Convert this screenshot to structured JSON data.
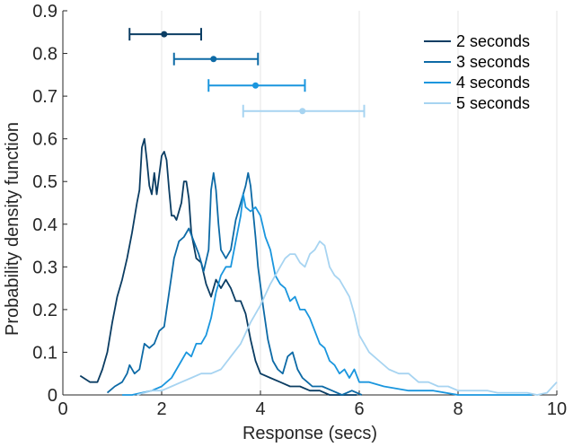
{
  "chart_data": {
    "type": "line",
    "xlabel": "Response (secs)",
    "ylabel": "Probability density function",
    "xlim": [
      0,
      10
    ],
    "ylim": [
      0,
      0.9
    ],
    "x_ticks": [
      0,
      2,
      4,
      6,
      8,
      10
    ],
    "y_ticks": [
      0,
      0.1,
      0.2,
      0.3,
      0.4,
      0.5,
      0.6,
      0.7,
      0.8,
      0.9
    ],
    "x_tick_labels": [
      "0",
      "2",
      "4",
      "6",
      "8",
      "10"
    ],
    "y_tick_labels": [
      "0",
      "0.1",
      "0.2",
      "0.3",
      "0.4",
      "0.5",
      "0.6",
      "0.7",
      "0.8",
      "0.9"
    ],
    "grid": "vertical",
    "legend_position": "top-right",
    "series": [
      {
        "name": "2 seconds",
        "color": "#0b3d63",
        "mean": 2.05,
        "error_low": 1.35,
        "error_high": 2.8,
        "marker_y": 0.845,
        "x": [
          0.35,
          0.55,
          0.7,
          0.8,
          0.9,
          1.0,
          1.1,
          1.2,
          1.3,
          1.4,
          1.5,
          1.55,
          1.6,
          1.65,
          1.7,
          1.75,
          1.8,
          1.85,
          1.9,
          2.0,
          2.05,
          2.1,
          2.15,
          2.2,
          2.25,
          2.3,
          2.4,
          2.45,
          2.5,
          2.55,
          2.6,
          2.7,
          2.8,
          2.9,
          3.0,
          3.1,
          3.2,
          3.3,
          3.4,
          3.5,
          3.6,
          3.7,
          3.8,
          3.9,
          4.0,
          4.2,
          4.4,
          4.6,
          4.8,
          5.0,
          5.2,
          5.4,
          5.6,
          5.8,
          5.95
        ],
        "y": [
          0.045,
          0.03,
          0.03,
          0.06,
          0.1,
          0.17,
          0.23,
          0.27,
          0.32,
          0.38,
          0.45,
          0.48,
          0.58,
          0.6,
          0.55,
          0.49,
          0.47,
          0.52,
          0.47,
          0.56,
          0.57,
          0.55,
          0.48,
          0.42,
          0.42,
          0.41,
          0.45,
          0.5,
          0.5,
          0.46,
          0.38,
          0.32,
          0.31,
          0.26,
          0.23,
          0.27,
          0.25,
          0.27,
          0.25,
          0.22,
          0.22,
          0.19,
          0.13,
          0.08,
          0.05,
          0.04,
          0.03,
          0.02,
          0.02,
          0.01,
          0.01,
          0.0,
          0.0,
          0.0,
          0.0
        ]
      },
      {
        "name": "3 seconds",
        "color": "#0d6aa6",
        "mean": 3.05,
        "error_low": 2.25,
        "error_high": 3.95,
        "marker_y": 0.787,
        "x": [
          0.9,
          1.05,
          1.2,
          1.3,
          1.35,
          1.45,
          1.55,
          1.65,
          1.75,
          1.85,
          1.95,
          2.05,
          2.15,
          2.25,
          2.35,
          2.45,
          2.55,
          2.65,
          2.75,
          2.85,
          2.95,
          3.0,
          3.05,
          3.1,
          3.15,
          3.2,
          3.3,
          3.4,
          3.5,
          3.6,
          3.7,
          3.75,
          3.8,
          3.9,
          3.95,
          4.05,
          4.15,
          4.25,
          4.35,
          4.45,
          4.55,
          4.65,
          4.75,
          4.85,
          4.95,
          5.05,
          5.25,
          5.45,
          5.65,
          5.85,
          6.05
        ],
        "y": [
          0.005,
          0.02,
          0.03,
          0.05,
          0.07,
          0.05,
          0.06,
          0.12,
          0.11,
          0.12,
          0.15,
          0.16,
          0.24,
          0.32,
          0.36,
          0.37,
          0.39,
          0.36,
          0.33,
          0.29,
          0.34,
          0.48,
          0.52,
          0.48,
          0.4,
          0.34,
          0.32,
          0.34,
          0.41,
          0.45,
          0.49,
          0.52,
          0.49,
          0.37,
          0.3,
          0.21,
          0.13,
          0.08,
          0.06,
          0.05,
          0.09,
          0.1,
          0.06,
          0.04,
          0.03,
          0.02,
          0.02,
          0.01,
          0.0,
          0.01,
          0.0
        ]
      },
      {
        "name": "4 seconds",
        "color": "#1a96de",
        "mean": 3.9,
        "error_low": 2.95,
        "error_high": 4.9,
        "marker_y": 0.725,
        "x": [
          1.2,
          1.4,
          1.6,
          1.8,
          2.0,
          2.1,
          2.2,
          2.3,
          2.4,
          2.5,
          2.6,
          2.7,
          2.8,
          2.9,
          3.0,
          3.1,
          3.2,
          3.3,
          3.4,
          3.5,
          3.6,
          3.65,
          3.7,
          3.8,
          3.9,
          4.0,
          4.1,
          4.2,
          4.3,
          4.4,
          4.5,
          4.6,
          4.7,
          4.8,
          4.9,
          5.0,
          5.1,
          5.2,
          5.3,
          5.4,
          5.5,
          5.6,
          5.7,
          5.8,
          5.9,
          6.0,
          6.2,
          6.5,
          7.0,
          7.5,
          8.0,
          8.5,
          9.0,
          9.5
        ],
        "y": [
          0.0,
          0.0,
          0.005,
          0.01,
          0.02,
          0.03,
          0.04,
          0.06,
          0.08,
          0.1,
          0.09,
          0.12,
          0.12,
          0.14,
          0.18,
          0.24,
          0.28,
          0.3,
          0.3,
          0.36,
          0.42,
          0.47,
          0.44,
          0.43,
          0.44,
          0.42,
          0.37,
          0.34,
          0.28,
          0.26,
          0.25,
          0.22,
          0.23,
          0.2,
          0.2,
          0.18,
          0.15,
          0.12,
          0.11,
          0.08,
          0.07,
          0.05,
          0.06,
          0.04,
          0.06,
          0.03,
          0.03,
          0.02,
          0.01,
          0.01,
          0.0,
          0.0,
          0.0,
          0.0
        ]
      },
      {
        "name": "5 seconds",
        "color": "#a7d4f1",
        "mean": 4.85,
        "error_low": 3.65,
        "error_high": 6.1,
        "marker_y": 0.665,
        "x": [
          1.5,
          1.8,
          2.0,
          2.2,
          2.4,
          2.6,
          2.8,
          3.0,
          3.2,
          3.4,
          3.6,
          3.8,
          4.0,
          4.2,
          4.4,
          4.5,
          4.6,
          4.7,
          4.8,
          4.9,
          5.0,
          5.1,
          5.2,
          5.3,
          5.4,
          5.5,
          5.6,
          5.7,
          5.8,
          5.9,
          6.0,
          6.2,
          6.4,
          6.6,
          6.8,
          7.0,
          7.2,
          7.4,
          7.6,
          7.8,
          8.0,
          8.2,
          8.4,
          8.6,
          8.8,
          9.0,
          9.2,
          9.4,
          9.6,
          9.8,
          10.0
        ],
        "y": [
          0.0,
          0.01,
          0.01,
          0.02,
          0.03,
          0.04,
          0.05,
          0.05,
          0.06,
          0.09,
          0.12,
          0.17,
          0.21,
          0.26,
          0.3,
          0.32,
          0.33,
          0.33,
          0.31,
          0.3,
          0.33,
          0.34,
          0.36,
          0.35,
          0.3,
          0.28,
          0.27,
          0.25,
          0.23,
          0.19,
          0.14,
          0.1,
          0.08,
          0.06,
          0.05,
          0.05,
          0.03,
          0.03,
          0.02,
          0.02,
          0.01,
          0.01,
          0.01,
          0.01,
          0.005,
          0.005,
          0.005,
          0.005,
          0.0,
          0.005,
          0.03
        ]
      }
    ]
  }
}
